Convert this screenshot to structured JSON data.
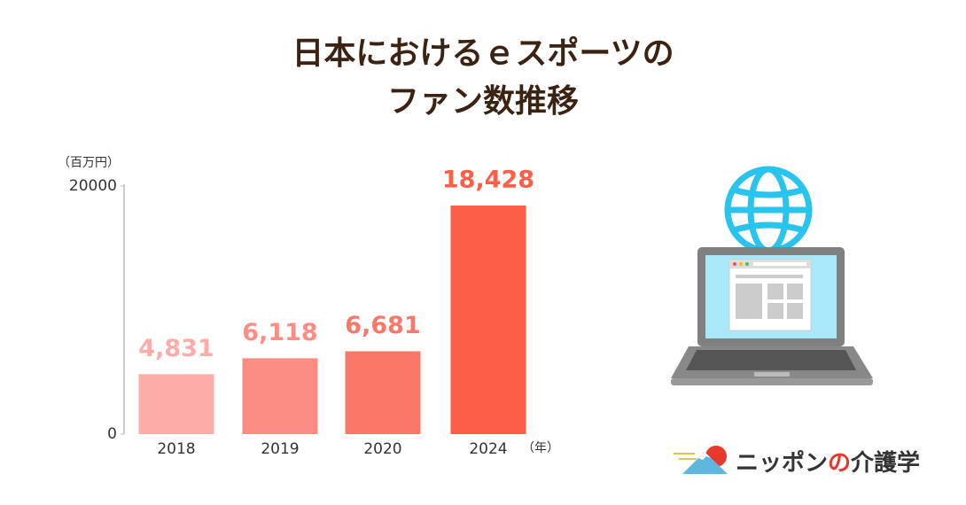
{
  "chart_data": {
    "type": "bar",
    "title": [
      "日本におけるｅスポーツの",
      "ファン数推移"
    ],
    "y_label": "（百万円）",
    "x_label": "（年）",
    "categories": [
      "2018",
      "2019",
      "2020",
      "2024"
    ],
    "values": [
      4831,
      6118,
      6681,
      18428
    ],
    "value_labels": [
      "4,831",
      "6,118",
      "6,681",
      "18,428"
    ],
    "colors": [
      "#fdaca7",
      "#fc8d83",
      "#fb7767",
      "#fc5e46"
    ],
    "ylim": [
      0,
      20000
    ],
    "yticks": [
      0,
      20000
    ],
    "grid": false
  },
  "brand": [
    "ニッポン",
    "の",
    "介護学"
  ]
}
